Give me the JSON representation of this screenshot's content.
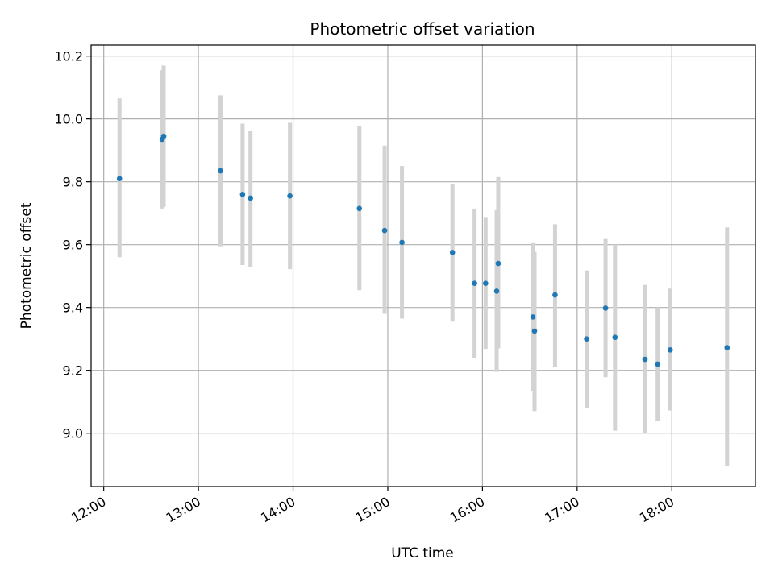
{
  "chart_data": {
    "type": "scatter",
    "title": "Photometric offset variation",
    "xlabel": "UTC time",
    "ylabel": "Photometric offset",
    "x_tick_labels": [
      "12:00",
      "13:00",
      "14:00",
      "15:00",
      "16:00",
      "17:00",
      "18:00"
    ],
    "x_tick_hours": [
      12,
      13,
      14,
      15,
      16,
      17,
      18
    ],
    "y_ticks": [
      9.0,
      9.2,
      9.4,
      9.6,
      9.8,
      10.0,
      10.2
    ],
    "y_tick_labels": [
      "9.0",
      "9.2",
      "9.4",
      "9.6",
      "9.8",
      "10.0",
      "10.2"
    ],
    "xlim": [
      "11:52",
      "18:53"
    ],
    "ylim": [
      8.83,
      10.235
    ],
    "grid": true,
    "point_color": "#1f77b4",
    "errorbar_color": "#d3d3d3",
    "points": [
      {
        "time": "12:10",
        "y": 9.81,
        "ylow": 9.56,
        "yhigh": 10.065
      },
      {
        "time": "12:37",
        "y": 9.935,
        "ylow": 9.715,
        "yhigh": 10.155
      },
      {
        "time": "12:38",
        "y": 9.945,
        "ylow": 9.72,
        "yhigh": 10.17
      },
      {
        "time": "13:14",
        "y": 9.835,
        "ylow": 9.595,
        "yhigh": 10.075
      },
      {
        "time": "13:28",
        "y": 9.76,
        "ylow": 9.535,
        "yhigh": 9.985
      },
      {
        "time": "13:33",
        "y": 9.748,
        "ylow": 9.53,
        "yhigh": 9.963
      },
      {
        "time": "13:58",
        "y": 9.755,
        "ylow": 9.522,
        "yhigh": 9.988
      },
      {
        "time": "14:42",
        "y": 9.715,
        "ylow": 9.455,
        "yhigh": 9.978
      },
      {
        "time": "14:58",
        "y": 9.645,
        "ylow": 9.38,
        "yhigh": 9.915
      },
      {
        "time": "15:09",
        "y": 9.607,
        "ylow": 9.365,
        "yhigh": 9.85
      },
      {
        "time": "15:41",
        "y": 9.575,
        "ylow": 9.355,
        "yhigh": 9.792
      },
      {
        "time": "15:55",
        "y": 9.477,
        "ylow": 9.24,
        "yhigh": 9.715
      },
      {
        "time": "16:02",
        "y": 9.477,
        "ylow": 9.268,
        "yhigh": 9.688
      },
      {
        "time": "16:09",
        "y": 9.452,
        "ylow": 9.195,
        "yhigh": 9.71
      },
      {
        "time": "16:10",
        "y": 9.54,
        "ylow": 9.27,
        "yhigh": 9.815
      },
      {
        "time": "16:32",
        "y": 9.37,
        "ylow": 9.135,
        "yhigh": 9.605
      },
      {
        "time": "16:33",
        "y": 9.325,
        "ylow": 9.07,
        "yhigh": 9.577
      },
      {
        "time": "16:46",
        "y": 9.44,
        "ylow": 9.212,
        "yhigh": 9.665
      },
      {
        "time": "17:06",
        "y": 9.3,
        "ylow": 9.08,
        "yhigh": 9.518
      },
      {
        "time": "17:18",
        "y": 9.398,
        "ylow": 9.178,
        "yhigh": 9.618
      },
      {
        "time": "17:24",
        "y": 9.305,
        "ylow": 9.008,
        "yhigh": 9.6
      },
      {
        "time": "17:43",
        "y": 9.235,
        "ylow": 8.998,
        "yhigh": 9.472
      },
      {
        "time": "17:51",
        "y": 9.22,
        "ylow": 9.04,
        "yhigh": 9.4
      },
      {
        "time": "17:59",
        "y": 9.265,
        "ylow": 9.072,
        "yhigh": 9.46
      },
      {
        "time": "18:35",
        "y": 9.272,
        "ylow": 8.895,
        "yhigh": 9.655
      }
    ]
  }
}
